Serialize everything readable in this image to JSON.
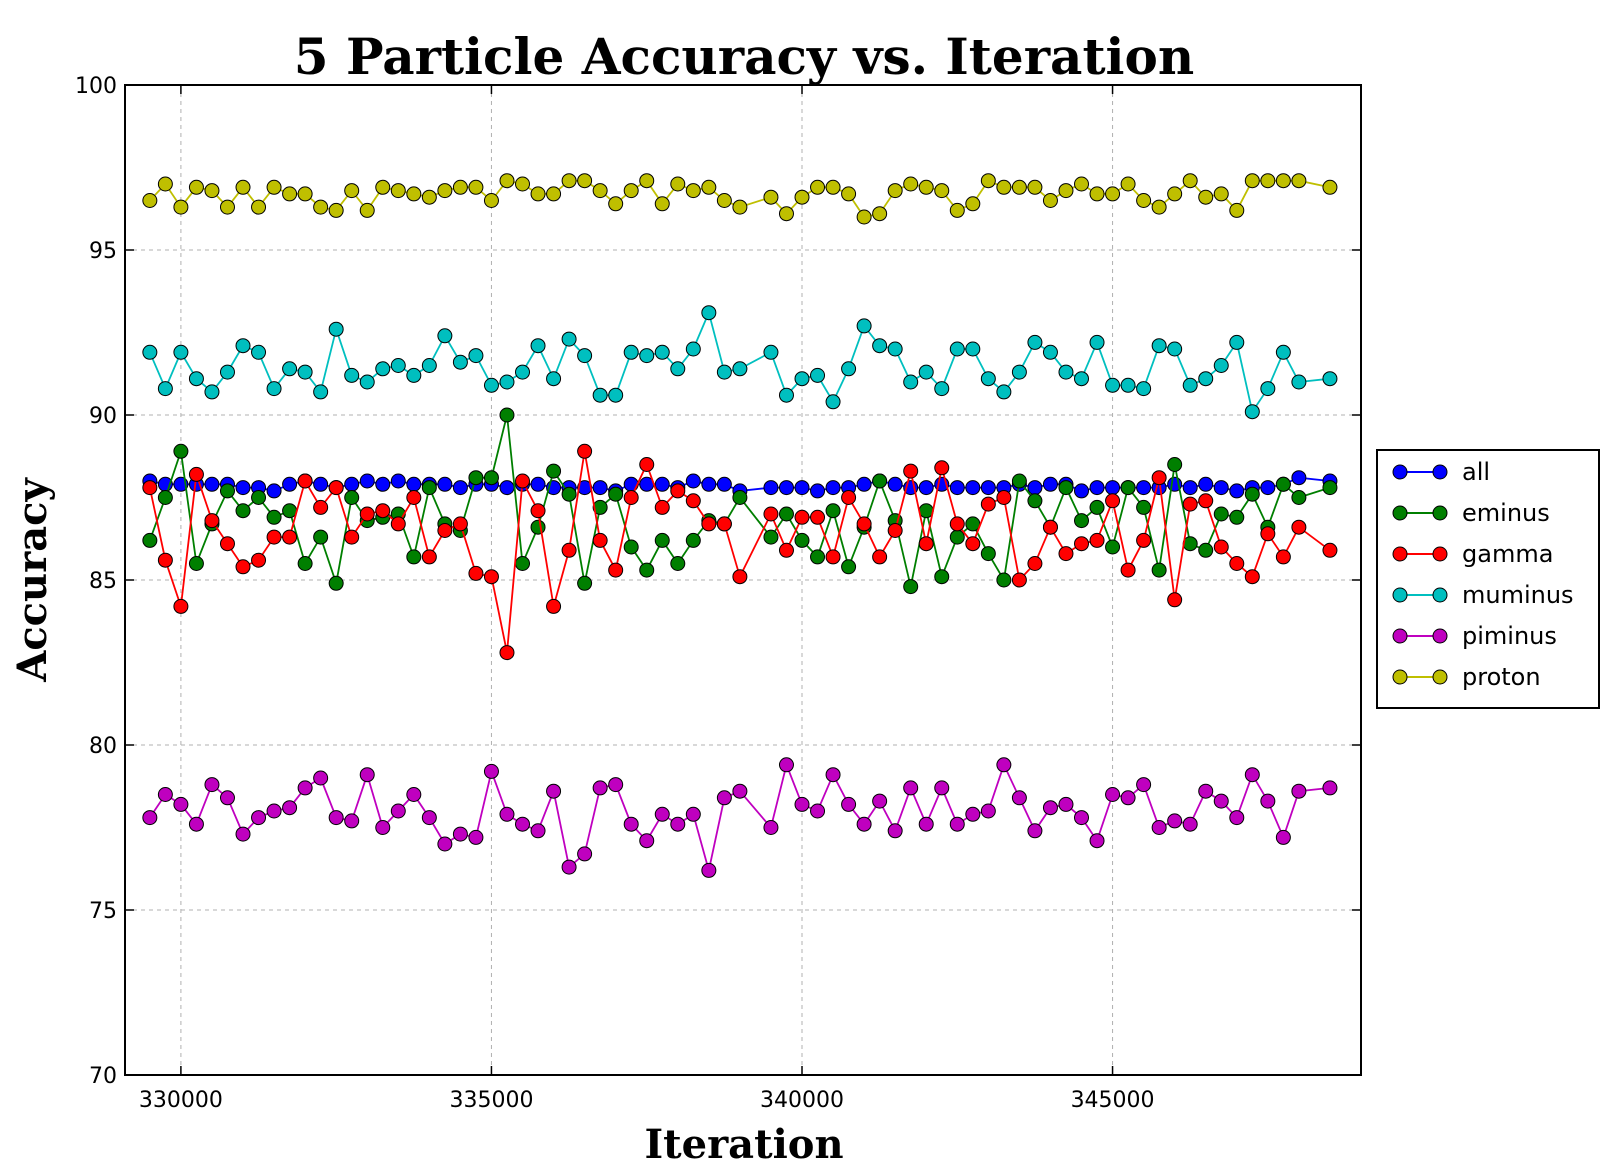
{
  "chart_data": {
    "type": "line",
    "title": "5 Particle Accuracy vs. Iteration",
    "xlabel": "Iteration",
    "ylabel": "Accuracy",
    "xlim": [
      329100,
      349000
    ],
    "ylim": [
      70,
      100
    ],
    "xticks": [
      330000,
      335000,
      340000,
      345000
    ],
    "yticks": [
      70,
      75,
      80,
      85,
      90,
      95,
      100
    ],
    "xtick_labels": [
      "330000",
      "335000",
      "340000",
      "345000"
    ],
    "ytick_labels": [
      "70",
      "75",
      "80",
      "85",
      "90",
      "95",
      "100"
    ],
    "grid": true,
    "legend_position": "right",
    "x": [
      329500,
      329750,
      330000,
      330250,
      330500,
      330750,
      331000,
      331250,
      331500,
      331750,
      332000,
      332250,
      332500,
      332750,
      333000,
      333250,
      333500,
      333750,
      334000,
      334250,
      334500,
      334750,
      335000,
      335250,
      335500,
      335750,
      336000,
      336250,
      336500,
      336750,
      337000,
      337250,
      337500,
      337750,
      338000,
      338250,
      338500,
      338750,
      339000,
      339500,
      339750,
      340000,
      340250,
      340500,
      340750,
      341000,
      341250,
      341500,
      341750,
      342000,
      342250,
      342500,
      342750,
      343000,
      343250,
      343500,
      343750,
      344000,
      344250,
      344500,
      344750,
      345000,
      345250,
      345500,
      345750,
      346000,
      346250,
      346500,
      346750,
      347000,
      347250,
      347500,
      347750,
      348000,
      348500
    ],
    "series": [
      {
        "name": "all",
        "color": "#0000ff",
        "values": [
          88.0,
          87.9,
          87.9,
          87.9,
          87.9,
          87.9,
          87.8,
          87.8,
          87.7,
          87.9,
          88.0,
          87.9,
          87.8,
          87.9,
          88.0,
          87.9,
          88.0,
          87.9,
          87.9,
          87.9,
          87.8,
          87.9,
          87.9,
          87.8,
          87.9,
          87.9,
          87.8,
          87.8,
          87.8,
          87.8,
          87.7,
          87.9,
          87.9,
          87.9,
          87.8,
          88.0,
          87.9,
          87.9,
          87.7,
          87.8,
          87.8,
          87.8,
          87.7,
          87.8,
          87.8,
          87.9,
          88.0,
          87.9,
          87.8,
          87.8,
          87.9,
          87.8,
          87.8,
          87.8,
          87.8,
          87.9,
          87.8,
          87.9,
          87.9,
          87.7,
          87.8,
          87.8,
          87.8,
          87.8,
          87.8,
          87.9,
          87.8,
          87.9,
          87.8,
          87.7,
          87.8,
          87.8,
          87.9,
          88.1,
          88.0
        ]
      },
      {
        "name": "eminus",
        "color": "#007f00",
        "values": [
          86.2,
          87.5,
          88.9,
          85.5,
          86.7,
          87.7,
          87.1,
          87.5,
          86.9,
          87.1,
          85.5,
          86.3,
          84.9,
          87.5,
          86.8,
          86.9,
          87.0,
          85.7,
          87.8,
          86.7,
          86.5,
          88.1,
          88.1,
          90.0,
          85.5,
          86.6,
          88.3,
          87.6,
          84.9,
          87.2,
          87.6,
          86.0,
          85.3,
          86.2,
          85.5,
          86.2,
          86.8,
          86.7,
          87.5,
          86.3,
          87.0,
          86.2,
          85.7,
          87.1,
          85.4,
          86.6,
          88.0,
          86.8,
          84.8,
          87.1,
          85.1,
          86.3,
          86.7,
          85.8,
          85.0,
          88.0,
          87.4,
          86.6,
          87.8,
          86.8,
          87.2,
          86.0,
          87.8,
          87.2,
          85.3,
          88.5,
          86.1,
          85.9,
          87.0,
          86.9,
          87.6,
          86.6,
          87.9,
          87.5,
          87.8
        ]
      },
      {
        "name": "gamma",
        "color": "#ff0000",
        "values": [
          87.8,
          85.6,
          84.2,
          88.2,
          86.8,
          86.1,
          85.4,
          85.6,
          86.3,
          86.3,
          88.0,
          87.2,
          87.8,
          86.3,
          87.0,
          87.1,
          86.7,
          87.5,
          85.7,
          86.5,
          86.7,
          85.2,
          85.1,
          82.8,
          88.0,
          87.1,
          84.2,
          85.9,
          88.9,
          86.2,
          85.3,
          87.5,
          88.5,
          87.2,
          87.7,
          87.4,
          86.7,
          86.7,
          85.1,
          87.0,
          85.9,
          86.9,
          86.9,
          85.7,
          87.5,
          86.7,
          85.7,
          86.5,
          88.3,
          86.1,
          88.4,
          86.7,
          86.1,
          87.3,
          87.5,
          85.0,
          85.5,
          86.6,
          85.8,
          86.1,
          86.2,
          87.4,
          85.3,
          86.2,
          88.1,
          84.4,
          87.3,
          87.4,
          86.0,
          85.5,
          85.1,
          86.4,
          85.7,
          86.6,
          85.9
        ]
      },
      {
        "name": "muminus",
        "color": "#00bfbf",
        "values": [
          91.9,
          90.8,
          91.9,
          91.1,
          90.7,
          91.3,
          92.1,
          91.9,
          90.8,
          91.4,
          91.3,
          90.7,
          92.6,
          91.2,
          91.0,
          91.4,
          91.5,
          91.2,
          91.5,
          92.4,
          91.6,
          91.8,
          90.9,
          91.0,
          91.3,
          92.1,
          91.1,
          92.3,
          91.8,
          90.6,
          90.6,
          91.9,
          91.8,
          91.9,
          91.4,
          92.0,
          93.1,
          91.3,
          91.4,
          91.9,
          90.6,
          91.1,
          91.2,
          90.4,
          91.4,
          92.7,
          92.1,
          92.0,
          91.0,
          91.3,
          90.8,
          92.0,
          92.0,
          91.1,
          90.7,
          91.3,
          92.2,
          91.9,
          91.3,
          91.1,
          92.2,
          90.9,
          90.9,
          90.8,
          92.1,
          92.0,
          90.9,
          91.1,
          91.5,
          92.2,
          90.1,
          90.8,
          91.9,
          91.0,
          91.1
        ]
      },
      {
        "name": "piminus",
        "color": "#bf00bf",
        "values": [
          77.8,
          78.5,
          78.2,
          77.6,
          78.8,
          78.4,
          77.3,
          77.8,
          78.0,
          78.1,
          78.7,
          79.0,
          77.8,
          77.7,
          79.1,
          77.5,
          78.0,
          78.5,
          77.8,
          77.0,
          77.3,
          77.2,
          79.2,
          77.9,
          77.6,
          77.4,
          78.6,
          76.3,
          76.7,
          78.7,
          78.8,
          77.6,
          77.1,
          77.9,
          77.6,
          77.9,
          76.2,
          78.4,
          78.6,
          77.5,
          79.4,
          78.2,
          78.0,
          79.1,
          78.2,
          77.6,
          78.3,
          77.4,
          78.7,
          77.6,
          78.7,
          77.6,
          77.9,
          78.0,
          79.4,
          78.4,
          77.4,
          78.1,
          78.2,
          77.8,
          77.1,
          78.5,
          78.4,
          78.8,
          77.5,
          77.7,
          77.6,
          78.6,
          78.3,
          77.8,
          79.1,
          78.3,
          77.2,
          78.6,
          78.7
        ]
      },
      {
        "name": "proton",
        "color": "#bfbf00",
        "values": [
          96.5,
          97.0,
          96.3,
          96.9,
          96.8,
          96.3,
          96.9,
          96.3,
          96.9,
          96.7,
          96.7,
          96.3,
          96.2,
          96.8,
          96.2,
          96.9,
          96.8,
          96.7,
          96.6,
          96.8,
          96.9,
          96.9,
          96.5,
          97.1,
          97.0,
          96.7,
          96.7,
          97.1,
          97.1,
          96.8,
          96.4,
          96.8,
          97.1,
          96.4,
          97.0,
          96.8,
          96.9,
          96.5,
          96.3,
          96.6,
          96.1,
          96.6,
          96.9,
          96.9,
          96.7,
          96.0,
          96.1,
          96.8,
          97.0,
          96.9,
          96.8,
          96.2,
          96.4,
          97.1,
          96.9,
          96.9,
          96.9,
          96.5,
          96.8,
          97.0,
          96.7,
          96.7,
          97.0,
          96.5,
          96.3,
          96.7,
          97.1,
          96.6,
          96.7,
          96.2,
          97.1,
          97.1,
          97.1,
          97.1,
          96.9
        ]
      }
    ]
  }
}
